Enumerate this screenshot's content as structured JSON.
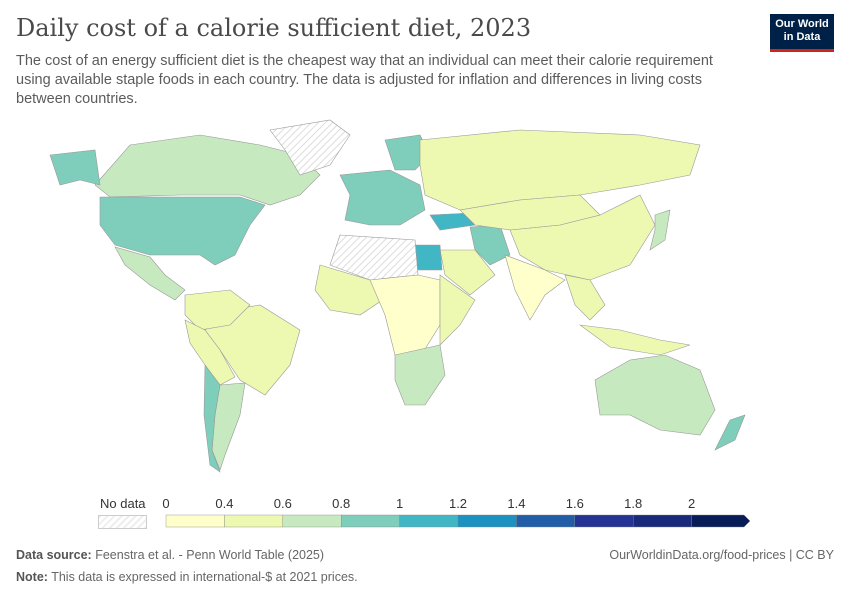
{
  "header": {
    "title": "Daily cost of a calorie sufficient diet, 2023",
    "subtitle": "The cost of an energy sufficient diet is the cheapest way that an individual can meet their calorie requirement using available staple foods in each country. The data is adjusted for inflation and differences in living costs between countries.",
    "logo": "Our World in Data"
  },
  "legend": {
    "no_data": "No data",
    "ticks": [
      "0",
      "0.4",
      "0.6",
      "0.8",
      "1",
      "1.2",
      "1.4",
      "1.6",
      "1.8",
      "2"
    ],
    "colors": [
      "#ffffcc",
      "#edf8b1",
      "#c7e9c0",
      "#7fcdbb",
      "#41b6c4",
      "#1d91c0",
      "#225ea8",
      "#253494",
      "#1a2a7a",
      "#081d58"
    ],
    "no_data_color": "#eeeeee"
  },
  "chart_data": {
    "type": "choropleth",
    "unit": "international-$ (2021 prices)",
    "regions": [
      {
        "name": "Canada",
        "value": 0.7
      },
      {
        "name": "United States",
        "value": 0.95
      },
      {
        "name": "Alaska",
        "value": 0.95
      },
      {
        "name": "Mexico",
        "value": 0.7
      },
      {
        "name": "Greenland",
        "value": null
      },
      {
        "name": "Brazil",
        "value": 0.5
      },
      {
        "name": "Colombia/Venezuela",
        "value": 0.55
      },
      {
        "name": "Peru/Bolivia",
        "value": 0.5
      },
      {
        "name": "Argentina",
        "value": 0.7
      },
      {
        "name": "Chile",
        "value": 0.9
      },
      {
        "name": "Western Europe",
        "value": 0.85
      },
      {
        "name": "Scandinavia",
        "value": 0.85
      },
      {
        "name": "Russia",
        "value": 0.5
      },
      {
        "name": "Turkey",
        "value": 1.1
      },
      {
        "name": "Iran",
        "value": 0.9
      },
      {
        "name": "Arabia",
        "value": 0.55
      },
      {
        "name": "Egypt",
        "value": 1.1
      },
      {
        "name": "Libya/Algeria",
        "value": null
      },
      {
        "name": "West Africa",
        "value": 0.5
      },
      {
        "name": "Central Africa",
        "value": 0.35
      },
      {
        "name": "East Africa",
        "value": 0.45
      },
      {
        "name": "Southern Africa",
        "value": 0.7
      },
      {
        "name": "China",
        "value": 0.55
      },
      {
        "name": "Mongolia/Central Asia",
        "value": 0.5
      },
      {
        "name": "India",
        "value": 0.35
      },
      {
        "name": "Southeast Asia",
        "value": 0.5
      },
      {
        "name": "Japan",
        "value": 0.75
      },
      {
        "name": "Australia",
        "value": 0.7
      },
      {
        "name": "New Zealand",
        "value": 0.9
      },
      {
        "name": "Indonesia",
        "value": 0.45
      }
    ]
  },
  "footer": {
    "source_label": "Data source:",
    "source": "Feenstra et al. - Penn World Table (2025)",
    "note_label": "Note:",
    "note": "This data is expressed in international-$ at 2021 prices.",
    "url": "OurWorldinData.org/food-prices | CC BY"
  }
}
